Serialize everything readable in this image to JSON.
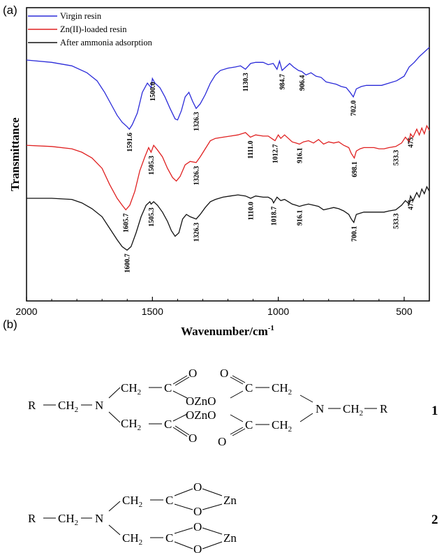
{
  "panel_a_label": "(a)",
  "panel_b_label": "(b)",
  "chart_data": {
    "type": "line",
    "xlabel": "Wavenumber/cm",
    "xlabel_sup": "-1",
    "ylabel": "Transmittance",
    "xlim": [
      2000,
      400
    ],
    "x_reversed": true,
    "xticks": [
      2000,
      1500,
      1000,
      500
    ],
    "grid": false,
    "legend_position": "top-left",
    "series": [
      {
        "name": "Virgin resin",
        "color": "#2b2bd9",
        "x": [
          2000,
          1900,
          1820,
          1760,
          1720,
          1690,
          1660,
          1640,
          1620,
          1600,
          1591.6,
          1580,
          1560,
          1540,
          1520,
          1505,
          1500,
          1490,
          1470,
          1450,
          1430,
          1410,
          1400,
          1385,
          1370,
          1355,
          1340,
          1326.3,
          1310,
          1290,
          1270,
          1250,
          1230,
          1200,
          1170,
          1150,
          1130.3,
          1110,
          1090,
          1060,
          1040,
          1020,
          1005,
          995,
          984.7,
          970,
          955,
          940,
          920,
          906.4,
          890,
          870,
          850,
          830,
          810,
          790,
          770,
          750,
          730,
          715,
          702,
          690,
          670,
          650,
          620,
          590,
          560,
          530,
          500,
          480,
          460,
          440,
          420,
          400
        ],
        "y": [
          1.0,
          0.99,
          0.975,
          0.945,
          0.91,
          0.86,
          0.8,
          0.76,
          0.73,
          0.71,
          0.7,
          0.72,
          0.77,
          0.86,
          0.9,
          0.88,
          0.92,
          0.9,
          0.88,
          0.84,
          0.79,
          0.745,
          0.74,
          0.78,
          0.84,
          0.86,
          0.82,
          0.79,
          0.81,
          0.85,
          0.9,
          0.935,
          0.955,
          0.965,
          0.97,
          0.975,
          0.96,
          0.985,
          0.99,
          0.99,
          0.98,
          0.985,
          0.96,
          0.995,
          0.955,
          0.97,
          0.985,
          0.97,
          0.955,
          0.95,
          0.935,
          0.945,
          0.93,
          0.925,
          0.905,
          0.9,
          0.895,
          0.885,
          0.88,
          0.86,
          0.84,
          0.875,
          0.885,
          0.89,
          0.89,
          0.89,
          0.9,
          0.91,
          0.93,
          0.97,
          0.99,
          1.015,
          1.035,
          1.055
        ]
      },
      {
        "name": "Zn(II)-loaded resin",
        "color": "#e02020",
        "x": [
          2000,
          1900,
          1820,
          1780,
          1740,
          1700,
          1670,
          1640,
          1620,
          1605.7,
          1590,
          1570,
          1550,
          1530,
          1515,
          1505.3,
          1495,
          1480,
          1460,
          1440,
          1420,
          1405,
          1390,
          1370,
          1350,
          1326.3,
          1310,
          1290,
          1270,
          1250,
          1220,
          1190,
          1160,
          1130,
          1111,
          1090,
          1060,
          1040,
          1020,
          1012.7,
          1000,
          990,
          975,
          960,
          945,
          930,
          916.1,
          900,
          880,
          860,
          840,
          820,
          800,
          780,
          760,
          740,
          720,
          710,
          698.1,
          690,
          675,
          660,
          640,
          620,
          600,
          580,
          560,
          533.3,
          510,
          495,
          480,
          475,
          465,
          450,
          440,
          430,
          420,
          410,
          400
        ],
        "y": [
          0.63,
          0.625,
          0.615,
          0.6,
          0.575,
          0.53,
          0.46,
          0.4,
          0.37,
          0.35,
          0.37,
          0.43,
          0.52,
          0.58,
          0.62,
          0.6,
          0.63,
          0.61,
          0.58,
          0.53,
          0.49,
          0.475,
          0.495,
          0.545,
          0.56,
          0.555,
          0.58,
          0.615,
          0.65,
          0.66,
          0.665,
          0.67,
          0.675,
          0.685,
          0.665,
          0.675,
          0.67,
          0.67,
          0.655,
          0.65,
          0.675,
          0.66,
          0.675,
          0.66,
          0.645,
          0.64,
          0.635,
          0.645,
          0.65,
          0.64,
          0.655,
          0.635,
          0.645,
          0.64,
          0.645,
          0.63,
          0.62,
          0.595,
          0.575,
          0.605,
          0.615,
          0.62,
          0.62,
          0.62,
          0.615,
          0.615,
          0.62,
          0.625,
          0.64,
          0.665,
          0.645,
          0.68,
          0.665,
          0.7,
          0.675,
          0.705,
          0.68,
          0.715,
          0.695
        ]
      },
      {
        "name": "After ammonia adsorption",
        "color": "#111111",
        "x": [
          2000,
          1900,
          1820,
          1780,
          1740,
          1700,
          1670,
          1640,
          1620,
          1600.7,
          1585,
          1565,
          1545,
          1525,
          1510,
          1505.3,
          1495,
          1480,
          1460,
          1440,
          1425,
          1410,
          1395,
          1380,
          1365,
          1350,
          1326.3,
          1310,
          1290,
          1270,
          1250,
          1220,
          1190,
          1160,
          1130,
          1110,
          1090,
          1060,
          1040,
          1025,
          1018.7,
          1005,
          990,
          975,
          960,
          945,
          930,
          916.1,
          900,
          880,
          860,
          840,
          820,
          800,
          780,
          760,
          740,
          720,
          710,
          700.1,
          690,
          675,
          660,
          640,
          620,
          600,
          580,
          560,
          533.3,
          510,
          495,
          480,
          475,
          465,
          450,
          440,
          430,
          420,
          410,
          400
        ],
        "y": [
          0.4,
          0.4,
          0.395,
          0.38,
          0.355,
          0.32,
          0.27,
          0.22,
          0.19,
          0.175,
          0.19,
          0.25,
          0.32,
          0.37,
          0.385,
          0.375,
          0.385,
          0.37,
          0.34,
          0.3,
          0.26,
          0.235,
          0.25,
          0.31,
          0.33,
          0.32,
          0.31,
          0.33,
          0.36,
          0.385,
          0.395,
          0.405,
          0.41,
          0.415,
          0.41,
          0.4,
          0.41,
          0.405,
          0.405,
          0.395,
          0.38,
          0.405,
          0.39,
          0.395,
          0.385,
          0.375,
          0.37,
          0.365,
          0.37,
          0.375,
          0.37,
          0.365,
          0.35,
          0.355,
          0.36,
          0.355,
          0.345,
          0.33,
          0.31,
          0.295,
          0.33,
          0.335,
          0.34,
          0.34,
          0.34,
          0.34,
          0.34,
          0.345,
          0.35,
          0.37,
          0.39,
          0.375,
          0.41,
          0.39,
          0.425,
          0.405,
          0.44,
          0.42,
          0.45,
          0.43
        ]
      }
    ],
    "annotations": [
      {
        "series": 0,
        "x": 1591.6,
        "text": "1591.6",
        "pos": "below"
      },
      {
        "series": 0,
        "x": 1500.0,
        "text": "1500.0",
        "pos": "below"
      },
      {
        "series": 0,
        "x": 1326.3,
        "text": "1326.3",
        "pos": "below"
      },
      {
        "series": 0,
        "x": 1130.3,
        "text": "1130.3",
        "pos": "below"
      },
      {
        "series": 0,
        "x": 984.7,
        "text": "984.7",
        "pos": "below"
      },
      {
        "series": 0,
        "x": 906.4,
        "text": "906.4",
        "pos": "below"
      },
      {
        "series": 0,
        "x": 702.0,
        "text": "702.0",
        "pos": "below"
      },
      {
        "series": 1,
        "x": 1605.7,
        "text": "1605.7",
        "pos": "below"
      },
      {
        "series": 1,
        "x": 1505.3,
        "text": "1505.3",
        "pos": "below"
      },
      {
        "series": 1,
        "x": 1326.3,
        "text": "1326.3",
        "pos": "below"
      },
      {
        "series": 1,
        "x": 1111.0,
        "text": "1111.0",
        "pos": "below"
      },
      {
        "series": 1,
        "x": 1012.7,
        "text": "1012.7",
        "pos": "below"
      },
      {
        "series": 1,
        "x": 916.1,
        "text": "916.1",
        "pos": "below"
      },
      {
        "series": 1,
        "x": 698.1,
        "text": "698.1",
        "pos": "below"
      },
      {
        "series": 1,
        "x": 533.3,
        "text": "533.3",
        "pos": "below"
      },
      {
        "series": 1,
        "x": 475,
        "text": "475",
        "pos": "below"
      },
      {
        "series": 2,
        "x": 1600.7,
        "text": "1600.7",
        "pos": "below"
      },
      {
        "series": 2,
        "x": 1505.3,
        "text": "1505.3",
        "pos": "below"
      },
      {
        "series": 2,
        "x": 1326.3,
        "text": "1326.3",
        "pos": "below"
      },
      {
        "series": 2,
        "x": 1110.0,
        "text": "1110.0",
        "pos": "below"
      },
      {
        "series": 2,
        "x": 1018.7,
        "text": "1018.7",
        "pos": "below"
      },
      {
        "series": 2,
        "x": 916.1,
        "text": "916.1",
        "pos": "below"
      },
      {
        "series": 2,
        "x": 700.1,
        "text": "700.1",
        "pos": "below"
      },
      {
        "series": 2,
        "x": 533.3,
        "text": "533.3",
        "pos": "below"
      },
      {
        "series": 2,
        "x": 475,
        "text": "475",
        "pos": "below"
      }
    ]
  },
  "structures": {
    "cpd1_number": "1",
    "cpd2_number": "2",
    "R": "R",
    "N": "N",
    "C": "C",
    "O": "O",
    "CH": "CH",
    "sub2": "2",
    "OZnO": "OZnO",
    "Zn": "Zn"
  }
}
